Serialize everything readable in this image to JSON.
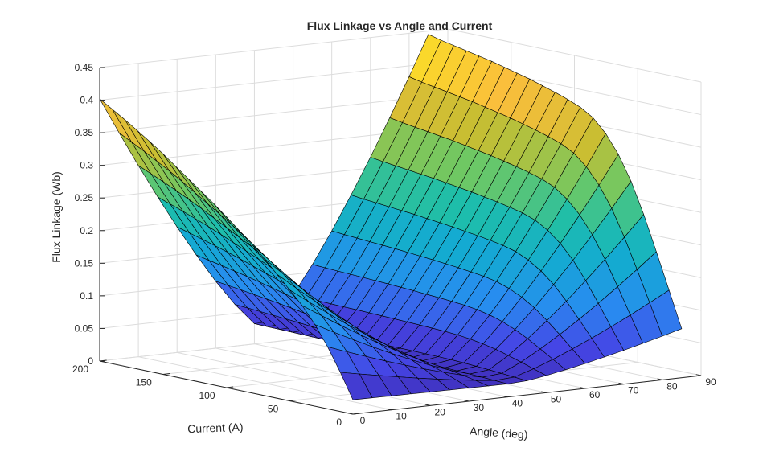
{
  "chart_data": {
    "type": "surface",
    "title": "Flux Linkage vs Angle and Current",
    "xlabel": "Angle (deg)",
    "ylabel": "Current (A)",
    "zlabel": "Flux Linkage (Wb)",
    "xlim": [
      0,
      90
    ],
    "ylim": [
      0,
      200
    ],
    "zlim": [
      0,
      0.45
    ],
    "xticks": [
      "0",
      "10",
      "20",
      "30",
      "40",
      "50",
      "60",
      "70",
      "80",
      "90"
    ],
    "yticks": [
      "0",
      "50",
      "100",
      "150",
      "200"
    ],
    "zticks": [
      "0",
      "0.05",
      "0.1",
      "0.15",
      "0.2",
      "0.25",
      "0.3",
      "0.35",
      "0.4",
      "0.45"
    ],
    "grid": true,
    "colormap": "parula",
    "edge_color": "#000000",
    "angle": [
      0,
      5,
      10,
      15,
      20,
      25,
      30,
      35,
      40,
      45,
      50,
      55,
      60,
      65,
      70,
      75,
      80,
      85
    ],
    "current": [
      0,
      10,
      20,
      30,
      40,
      50,
      60,
      70,
      80,
      90,
      100,
      110,
      120,
      130,
      140,
      150,
      160,
      170,
      180,
      190,
      200
    ],
    "flux_peak_at_angle_0": [
      0.022,
      0.06,
      0.095,
      0.125,
      0.15,
      0.17,
      0.19,
      0.21,
      0.228,
      0.245,
      0.262,
      0.278,
      0.293,
      0.308,
      0.323,
      0.338,
      0.352,
      0.365,
      0.378,
      0.39,
      0.402
    ],
    "flux_peak_at_angle_85": [
      0.075,
      0.13,
      0.185,
      0.238,
      0.285,
      0.322,
      0.35,
      0.37,
      0.382,
      0.39,
      0.397,
      0.403,
      0.409,
      0.414,
      0.419,
      0.424,
      0.428,
      0.432,
      0.436,
      0.44,
      0.445
    ],
    "flux_min": 0.02
  }
}
